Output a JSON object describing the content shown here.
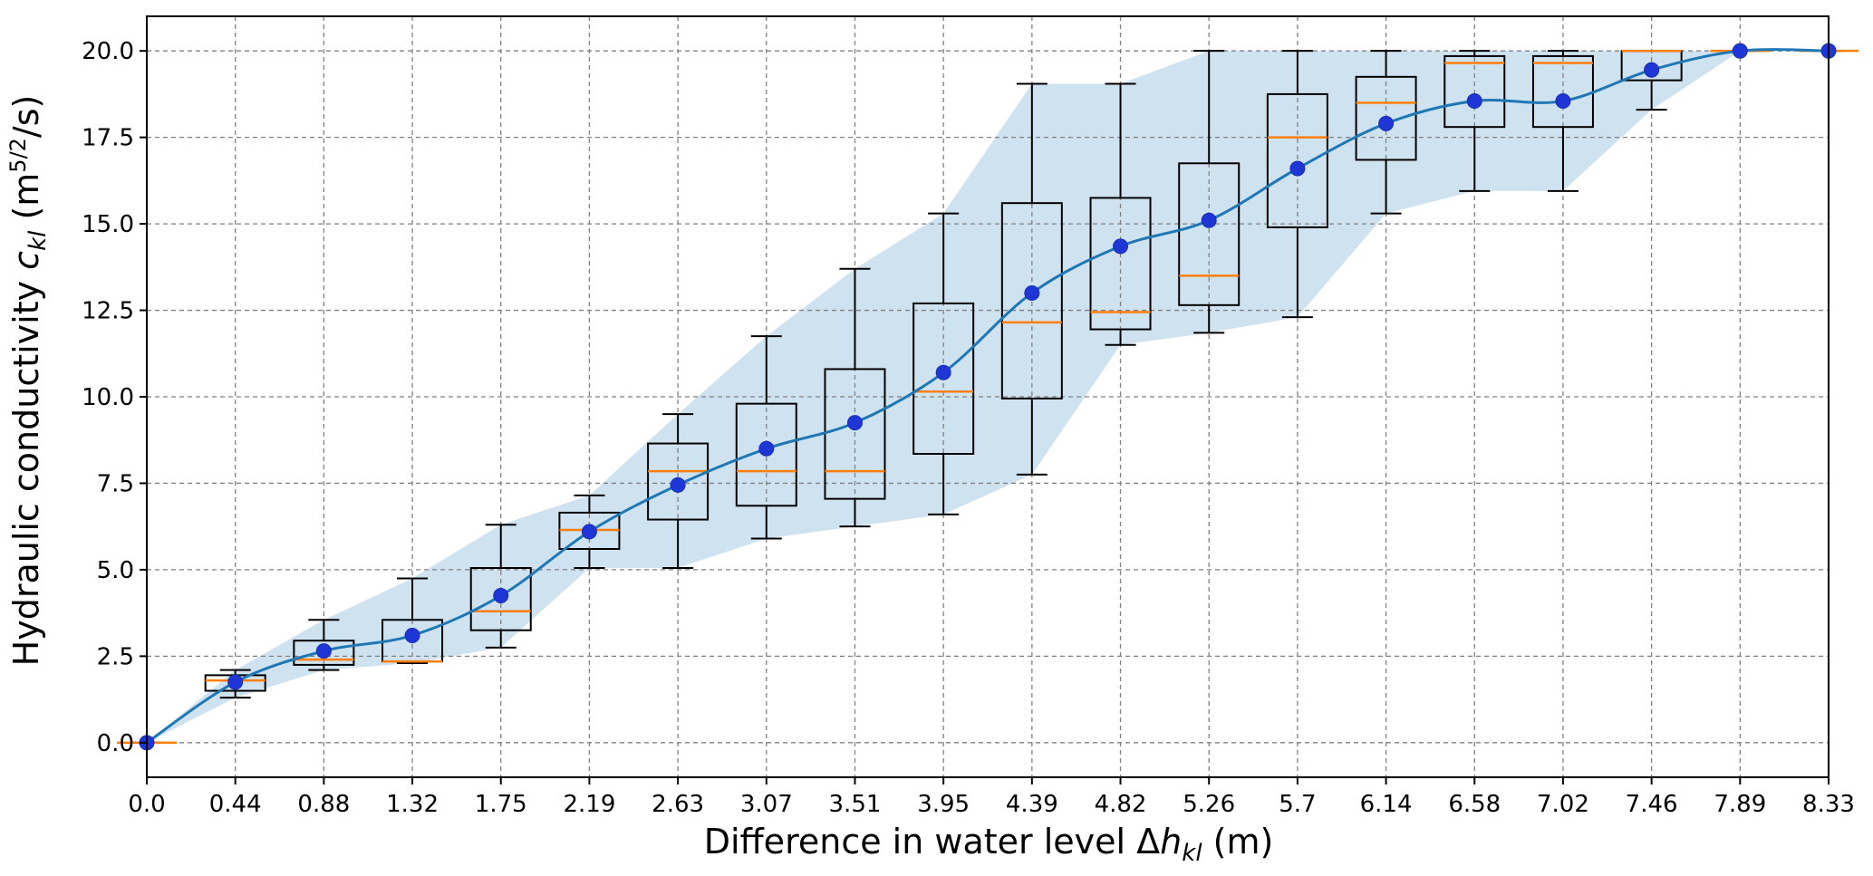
{
  "chart_data": {
    "type": "box",
    "xlabel": {
      "prefix": "Difference in water level Δ",
      "var": "h",
      "sub": "kl",
      "suffix": " (m)"
    },
    "ylabel": {
      "prefix": "Hydraulic conductivity ",
      "var": "c",
      "sub": "kl",
      "mid": " (m",
      "sup": "5/2",
      "suffix": "/s)"
    },
    "x_ticks": [
      "0.0",
      "0.44",
      "0.88",
      "1.32",
      "1.75",
      "2.19",
      "2.63",
      "3.07",
      "3.51",
      "3.95",
      "4.39",
      "4.82",
      "5.26",
      "5.7",
      "6.14",
      "6.58",
      "7.02",
      "7.46",
      "7.89",
      "8.33"
    ],
    "y_ticks": [
      "0.0",
      "2.5",
      "5.0",
      "7.5",
      "10.0",
      "12.5",
      "15.0",
      "17.5",
      "20.0"
    ],
    "ylim": [
      -1.0,
      21.0
    ],
    "grid": true,
    "colors": {
      "mean_line": "#1f77b4",
      "mean_marker": "#1f36d6",
      "median": "#ff7f0e",
      "band": "#cfe2f0"
    },
    "boxes": [
      {
        "q1": 0.0,
        "median": 0.0,
        "q3": 0.0,
        "whislo": 0.0,
        "whishi": 0.0,
        "mean": 0.0
      },
      {
        "q1": 1.5,
        "median": 1.8,
        "q3": 1.95,
        "whislo": 1.3,
        "whishi": 2.1,
        "mean": 1.75
      },
      {
        "q1": 2.25,
        "median": 2.4,
        "q3": 2.95,
        "whislo": 2.1,
        "whishi": 3.55,
        "mean": 2.65
      },
      {
        "q1": 2.35,
        "median": 2.35,
        "q3": 3.55,
        "whislo": 2.3,
        "whishi": 4.75,
        "mean": 3.1
      },
      {
        "q1": 3.25,
        "median": 3.8,
        "q3": 5.05,
        "whislo": 2.75,
        "whishi": 6.3,
        "mean": 4.25
      },
      {
        "q1": 5.6,
        "median": 6.15,
        "q3": 6.65,
        "whislo": 5.05,
        "whishi": 7.15,
        "mean": 6.1
      },
      {
        "q1": 6.45,
        "median": 7.85,
        "q3": 8.65,
        "whislo": 5.05,
        "whishi": 9.5,
        "mean": 7.45
      },
      {
        "q1": 6.85,
        "median": 7.85,
        "q3": 9.8,
        "whislo": 5.9,
        "whishi": 11.75,
        "mean": 8.5
      },
      {
        "q1": 7.05,
        "median": 7.85,
        "q3": 10.8,
        "whislo": 6.25,
        "whishi": 13.7,
        "mean": 9.25
      },
      {
        "q1": 8.35,
        "median": 10.15,
        "q3": 12.7,
        "whislo": 6.6,
        "whishi": 15.3,
        "mean": 10.7
      },
      {
        "q1": 9.95,
        "median": 12.15,
        "q3": 15.6,
        "whislo": 7.75,
        "whishi": 19.05,
        "mean": 13.0
      },
      {
        "q1": 11.95,
        "median": 12.45,
        "q3": 15.75,
        "whislo": 11.5,
        "whishi": 19.05,
        "mean": 14.35
      },
      {
        "q1": 12.65,
        "median": 13.5,
        "q3": 16.75,
        "whislo": 11.85,
        "whishi": 20.0,
        "mean": 15.1
      },
      {
        "q1": 14.9,
        "median": 17.5,
        "q3": 18.75,
        "whislo": 12.3,
        "whishi": 20.0,
        "mean": 16.6
      },
      {
        "q1": 16.85,
        "median": 18.5,
        "q3": 19.25,
        "whislo": 15.3,
        "whishi": 20.0,
        "mean": 17.9
      },
      {
        "q1": 17.8,
        "median": 19.65,
        "q3": 19.85,
        "whislo": 15.95,
        "whishi": 20.0,
        "mean": 18.55
      },
      {
        "q1": 17.8,
        "median": 19.65,
        "q3": 19.85,
        "whislo": 15.95,
        "whishi": 20.0,
        "mean": 18.55
      },
      {
        "q1": 19.15,
        "median": 20.0,
        "q3": 20.0,
        "whislo": 18.3,
        "whishi": 20.0,
        "mean": 19.45
      },
      {
        "q1": 20.0,
        "median": 20.0,
        "q3": 20.0,
        "whislo": 20.0,
        "whishi": 20.0,
        "mean": 20.0
      },
      {
        "q1": 20.0,
        "median": 20.0,
        "q3": 20.0,
        "whislo": 20.0,
        "whishi": 20.0,
        "mean": 20.0
      }
    ],
    "band_upper": [
      0.0,
      2.1,
      3.55,
      4.75,
      6.3,
      7.15,
      9.5,
      11.75,
      13.7,
      15.3,
      19.05,
      19.05,
      20.0,
      20.0,
      20.0,
      20.0,
      20.0,
      20.0,
      20.0,
      20.0
    ],
    "band_lower": [
      0.0,
      1.3,
      2.1,
      2.3,
      2.75,
      5.05,
      5.05,
      5.9,
      6.25,
      6.6,
      7.75,
      11.5,
      11.85,
      12.3,
      15.3,
      15.95,
      15.95,
      18.3,
      20.0,
      20.0
    ]
  }
}
